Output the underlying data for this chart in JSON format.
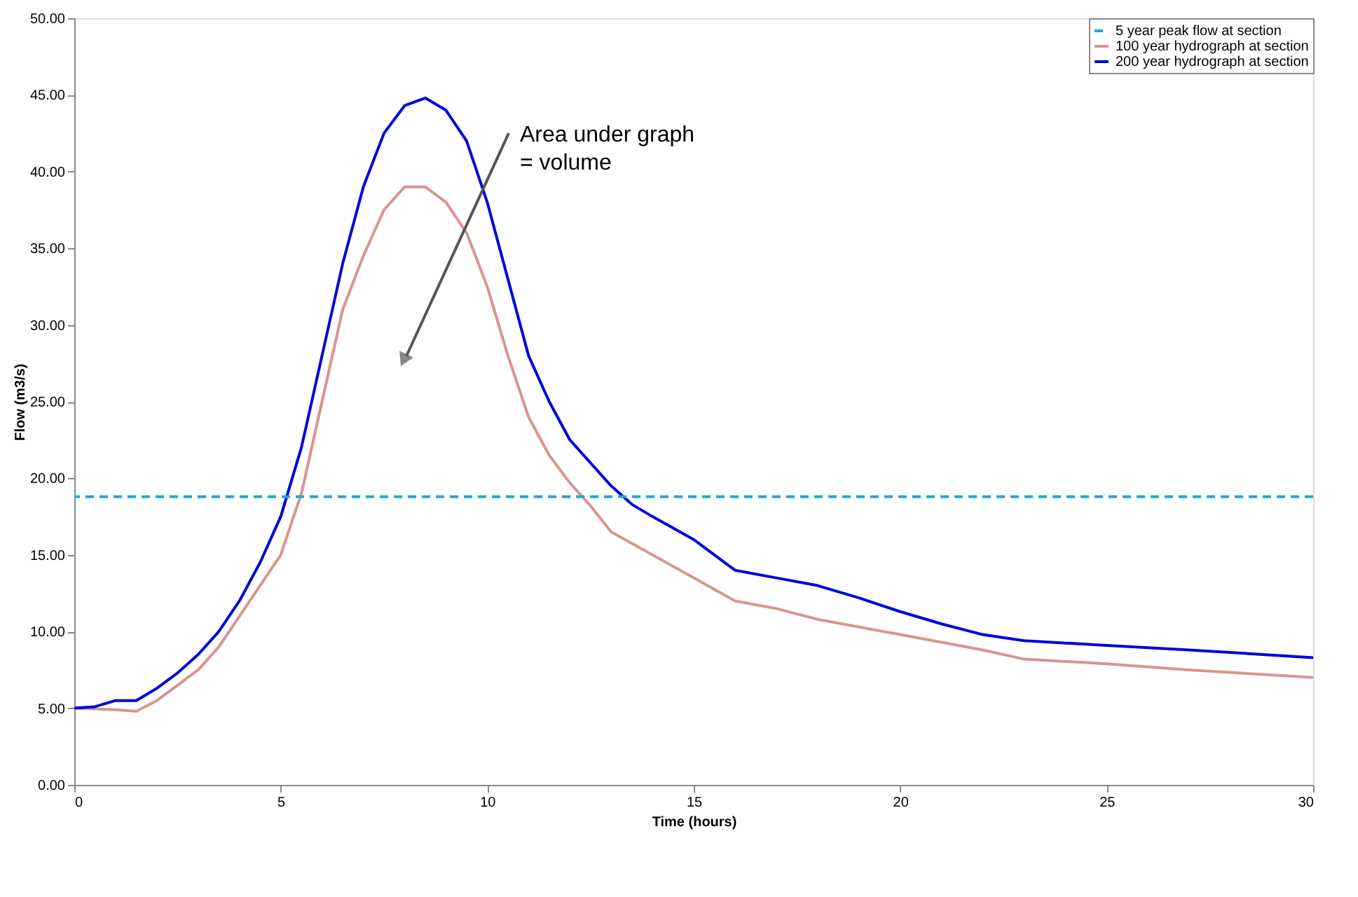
{
  "chart_data": {
    "type": "line",
    "xlabel": "Time (hours)",
    "ylabel": "Flow (m3/s)",
    "xlim": [
      0,
      30
    ],
    "xticks": [
      0,
      5,
      10,
      15,
      20,
      25,
      30
    ],
    "ylim": [
      0,
      50
    ],
    "yticks": [
      {
        "value": 0,
        "label": "0.00"
      },
      {
        "value": 5,
        "label": "5.00"
      },
      {
        "value": 10,
        "label": "10.00"
      },
      {
        "value": 15,
        "label": "15.00"
      },
      {
        "value": 20,
        "label": "20.00"
      },
      {
        "value": 25,
        "label": "25.00"
      },
      {
        "value": 30,
        "label": "30.00"
      },
      {
        "value": 35,
        "label": "35.00"
      },
      {
        "value": 40,
        "label": "40.00"
      },
      {
        "value": 45,
        "label": "45.00"
      },
      {
        "value": 50,
        "label": "50.00"
      }
    ],
    "grid": false,
    "legend": "top right",
    "marker": "none",
    "line_style": "solid",
    "ref_lines": [
      {
        "axis": "y",
        "value": 18.8,
        "label": "5 year peak flow at section",
        "color": "#1ea8d2",
        "line_style": "dashed"
      }
    ],
    "annotations": [
      "Area under graph\n= volume"
    ],
    "series": [
      {
        "name": "100 year hydrograph at section",
        "color": "#d9948f",
        "x": [
          0,
          1,
          1.5,
          2,
          2.5,
          3,
          3.5,
          4,
          4.5,
          5,
          5.5,
          6,
          6.5,
          7,
          7.5,
          8,
          8.5,
          9,
          9.5,
          10,
          10.5,
          11,
          11.5,
          12,
          12.5,
          13,
          14,
          15,
          16,
          17,
          18,
          20,
          22,
          23,
          25,
          27,
          30
        ],
        "values": [
          5,
          4.9,
          4.8,
          5.5,
          6.5,
          7.5,
          9,
          11,
          13,
          15,
          19,
          25,
          31,
          34.5,
          37.5,
          39,
          39,
          38,
          36,
          32.5,
          28,
          24,
          21.5,
          19.7,
          18.2,
          16.5,
          15,
          13.5,
          12,
          11.5,
          10.8,
          9.8,
          8.8,
          8.2,
          7.9,
          7.5,
          7
        ]
      },
      {
        "name": "200 year hydrograph at section",
        "color": "#0000e0",
        "x": [
          0,
          0.5,
          1,
          1.5,
          2,
          2.5,
          3,
          3.5,
          4,
          4.5,
          5,
          5.5,
          6,
          6.5,
          7,
          7.5,
          8,
          8.5,
          9,
          9.5,
          10,
          10.5,
          11,
          11.5,
          12,
          12.5,
          13,
          13.5,
          14,
          15,
          16,
          17,
          18,
          19,
          20,
          21,
          22,
          23,
          25,
          27,
          30
        ],
        "values": [
          5,
          5.1,
          5.5,
          5.5,
          6.3,
          7.3,
          8.5,
          10,
          12,
          14.5,
          17.5,
          22,
          28,
          34,
          39,
          42.5,
          44.3,
          44.8,
          44,
          42,
          38,
          33,
          28,
          25,
          22.5,
          21,
          19.5,
          18.3,
          17.5,
          16,
          14,
          13.5,
          13,
          12.2,
          11.3,
          10.5,
          9.8,
          9.4,
          9.1,
          8.8,
          8.3
        ]
      }
    ]
  }
}
